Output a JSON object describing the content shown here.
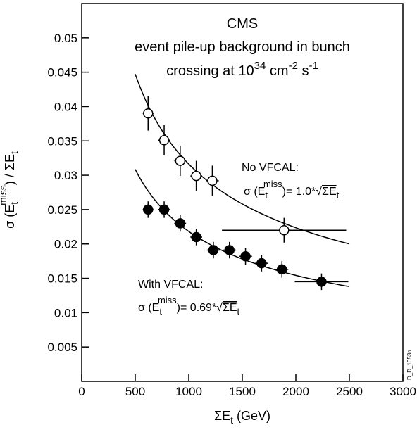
{
  "chart_data": {
    "type": "scatter",
    "title_lines": [
      "CMS",
      "event pile-up background in bunch",
      "crossing at 10",
      "34",
      " cm",
      "-2",
      " s",
      "-1"
    ],
    "title": {
      "line1": "CMS",
      "line2": "event pile-up background in bunch",
      "line3_main": "crossing at 10",
      "line3_exp1": "34",
      "line3_mid": " cm",
      "line3_exp2": "-2",
      "line3_mid2": " s",
      "line3_exp3": "-1"
    },
    "xlabel": {
      "main": "ΣE",
      "sub": "t",
      "unit": " (GeV)"
    },
    "ylabel": {
      "pre": "σ (E",
      "sub": "t",
      "sup": "miss",
      "post": ") / ΣE",
      "sub2": "t"
    },
    "xlim": [
      0,
      3000
    ],
    "ylim": [
      0,
      0.055
    ],
    "xticks": [
      "0",
      "500",
      "1000",
      "1500",
      "2000",
      "2500",
      "3000"
    ],
    "xtick_values": [
      0,
      500,
      1000,
      1500,
      2000,
      2500,
      3000
    ],
    "yticks": [
      "0.005",
      "0.01",
      "0.015",
      "0.02",
      "0.025",
      "0.03",
      "0.035",
      "0.04",
      "0.045",
      "0.05"
    ],
    "ytick_values": [
      0.005,
      0.01,
      0.015,
      0.02,
      0.025,
      0.03,
      0.035,
      0.04,
      0.045,
      0.05
    ],
    "series": [
      {
        "name": "No VFCAL",
        "marker": "open-circle",
        "points": [
          {
            "x": 620,
            "y": 0.039,
            "xerr": 50,
            "yerr": 0.0025
          },
          {
            "x": 770,
            "y": 0.0351,
            "xerr": 55,
            "yerr": 0.0022
          },
          {
            "x": 920,
            "y": 0.0321,
            "xerr": 55,
            "yerr": 0.0022
          },
          {
            "x": 1070,
            "y": 0.0299,
            "xerr": 55,
            "yerr": 0.0022
          },
          {
            "x": 1220,
            "y": 0.0292,
            "xerr": 60,
            "yerr": 0.0022
          },
          {
            "x": 1890,
            "y": 0.022,
            "xerr": 580,
            "yerr": 0.0018
          }
        ],
        "fit": {
          "coef": 1.0,
          "from": 500,
          "to": 2500
        }
      },
      {
        "name": "With VFCAL",
        "marker": "filled-circle",
        "points": [
          {
            "x": 620,
            "y": 0.025,
            "xerr": 50,
            "yerr": 0.0012
          },
          {
            "x": 770,
            "y": 0.025,
            "xerr": 55,
            "yerr": 0.0012
          },
          {
            "x": 920,
            "y": 0.023,
            "xerr": 55,
            "yerr": 0.0012
          },
          {
            "x": 1070,
            "y": 0.021,
            "xerr": 55,
            "yerr": 0.0012
          },
          {
            "x": 1230,
            "y": 0.0191,
            "xerr": 60,
            "yerr": 0.0012
          },
          {
            "x": 1380,
            "y": 0.0191,
            "xerr": 60,
            "yerr": 0.0012
          },
          {
            "x": 1530,
            "y": 0.0182,
            "xerr": 60,
            "yerr": 0.0012
          },
          {
            "x": 1680,
            "y": 0.0172,
            "xerr": 60,
            "yerr": 0.0012
          },
          {
            "x": 1870,
            "y": 0.0163,
            "xerr": 60,
            "yerr": 0.0012
          },
          {
            "x": 2240,
            "y": 0.0145,
            "xerr": 250,
            "yerr": 0.0012
          }
        ],
        "fit": {
          "coef": 0.69,
          "from": 500,
          "to": 2500
        }
      }
    ],
    "annotations": {
      "no_vfcal": {
        "label": "No VFCAL:",
        "f_pre": "σ (E",
        "f_sub": "t",
        "f_sup": "miss",
        "f_mid": ")= 1.0",
        "f_star": "*",
        "f_sqrt": "√",
        "f_sum": "ΣE",
        "f_sub2": "t"
      },
      "with_vfcal": {
        "label": "With VFCAL:",
        "f_pre": "σ (E",
        "f_sub": "t",
        "f_sup": "miss",
        "f_mid": ")= 0.69",
        "f_star": "*",
        "f_sqrt": "√",
        "f_sum": "ΣE",
        "f_sub2": "t"
      }
    },
    "side_id": "D_D_1053n",
    "grid": false
  }
}
